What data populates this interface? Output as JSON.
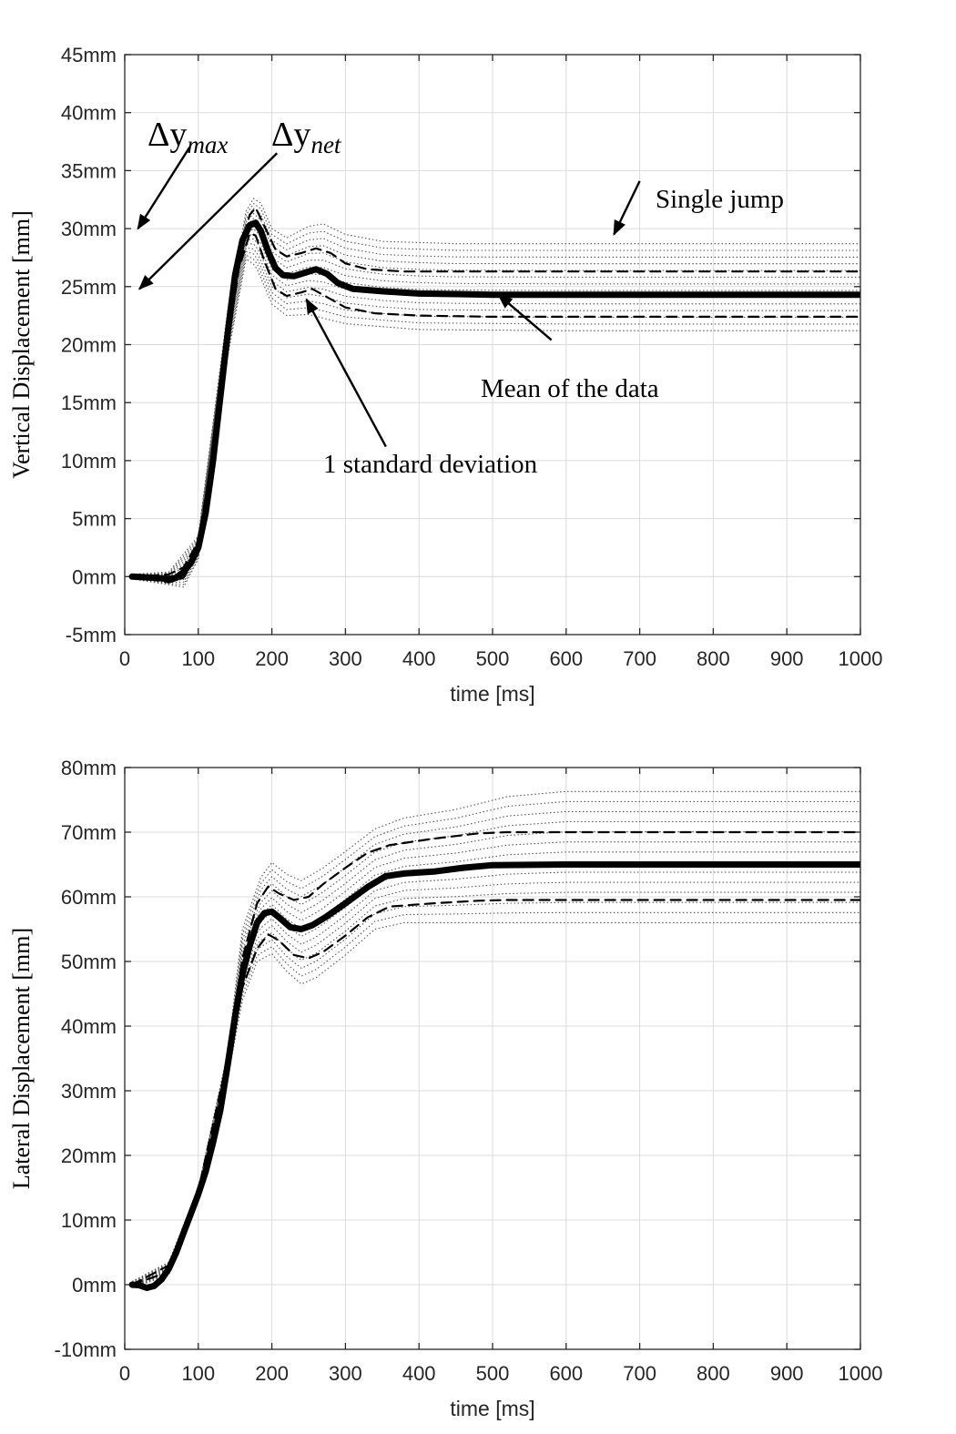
{
  "chart_data": [
    {
      "type": "line",
      "id": "vertical",
      "xlabel": "time [ms]",
      "ylabel": "Vertical Displacement [mm]",
      "xlim": [
        0,
        1000
      ],
      "ylim": [
        -5,
        45
      ],
      "xticks": [
        "0",
        "100",
        "200",
        "300",
        "400",
        "500",
        "600",
        "700",
        "800",
        "900",
        "1000"
      ],
      "yticks": [
        "-5mm",
        "0mm",
        "5mm",
        "10mm",
        "15mm",
        "20mm",
        "25mm",
        "30mm",
        "35mm",
        "40mm",
        "45mm"
      ],
      "grid": true,
      "series": [
        {
          "name": "Mean of the data",
          "style": "solid-thick",
          "points": [
            [
              10,
              0
            ],
            [
              40,
              -0.1
            ],
            [
              60,
              -0.2
            ],
            [
              70,
              -0.1
            ],
            [
              80,
              0.4
            ],
            [
              90,
              1.2
            ],
            [
              100,
              2.5
            ],
            [
              110,
              5.5
            ],
            [
              120,
              10
            ],
            [
              130,
              15.5
            ],
            [
              140,
              21
            ],
            [
              150,
              26
            ],
            [
              160,
              29
            ],
            [
              170,
              30.3
            ],
            [
              178,
              30.5
            ],
            [
              185,
              29.8
            ],
            [
              195,
              28
            ],
            [
              205,
              26.6
            ],
            [
              215,
              26
            ],
            [
              230,
              25.9
            ],
            [
              245,
              26.2
            ],
            [
              260,
              26.5
            ],
            [
              275,
              26.1
            ],
            [
              290,
              25.3
            ],
            [
              310,
              24.8
            ],
            [
              350,
              24.6
            ],
            [
              400,
              24.4
            ],
            [
              500,
              24.3
            ],
            [
              600,
              24.3
            ],
            [
              800,
              24.3
            ],
            [
              1000,
              24.3
            ]
          ]
        },
        {
          "name": "",
          "style": "dashed",
          "points": [
            [
              10,
              0.1
            ],
            [
              40,
              0.1
            ],
            [
              60,
              0.2
            ],
            [
              80,
              0.8
            ],
            [
              100,
              3
            ],
            [
              120,
              10.8
            ],
            [
              140,
              22
            ],
            [
              155,
              28
            ],
            [
              170,
              31.2
            ],
            [
              178,
              31.8
            ],
            [
              190,
              30.2
            ],
            [
              205,
              28.2
            ],
            [
              220,
              27.6
            ],
            [
              240,
              27.9
            ],
            [
              260,
              28.3
            ],
            [
              280,
              27.9
            ],
            [
              300,
              27
            ],
            [
              330,
              26.5
            ],
            [
              380,
              26.3
            ],
            [
              500,
              26.3
            ],
            [
              1000,
              26.3
            ]
          ]
        },
        {
          "name": "",
          "style": "dashed",
          "points": [
            [
              10,
              -0.1
            ],
            [
              40,
              -0.3
            ],
            [
              60,
              -0.5
            ],
            [
              80,
              -0.1
            ],
            [
              100,
              2
            ],
            [
              120,
              9.3
            ],
            [
              140,
              20
            ],
            [
              155,
              26.5
            ],
            [
              170,
              29.6
            ],
            [
              178,
              29.4
            ],
            [
              190,
              27.2
            ],
            [
              205,
              24.8
            ],
            [
              220,
              24.2
            ],
            [
              240,
              24.5
            ],
            [
              255,
              24.8
            ],
            [
              275,
              24.1
            ],
            [
              300,
              23.2
            ],
            [
              340,
              22.7
            ],
            [
              400,
              22.5
            ],
            [
              500,
              22.4
            ],
            [
              1000,
              22.4
            ]
          ]
        }
      ],
      "envelope": {
        "upper": [
          [
            10,
            0.2
          ],
          [
            60,
            0.4
          ],
          [
            100,
            3.5
          ],
          [
            140,
            23
          ],
          [
            165,
            31.5
          ],
          [
            175,
            32.6
          ],
          [
            185,
            32.2
          ],
          [
            200,
            30
          ],
          [
            220,
            29.2
          ],
          [
            250,
            30.2
          ],
          [
            270,
            30.4
          ],
          [
            300,
            29.5
          ],
          [
            350,
            28.9
          ],
          [
            450,
            28.7
          ],
          [
            1000,
            28.7
          ]
        ],
        "lower": [
          [
            10,
            -0.2
          ],
          [
            60,
            -0.7
          ],
          [
            80,
            -0.9
          ],
          [
            100,
            1.5
          ],
          [
            140,
            19
          ],
          [
            165,
            27.4
          ],
          [
            178,
            26.8
          ],
          [
            200,
            23.5
          ],
          [
            220,
            22.5
          ],
          [
            250,
            22.6
          ],
          [
            300,
            21.8
          ],
          [
            400,
            21.3
          ],
          [
            600,
            21.2
          ],
          [
            1000,
            21.2
          ]
        ],
        "count": 14
      },
      "annotations": [
        {
          "text": "Single jump",
          "arrow_from": [
            700,
            34.1
          ],
          "arrow_to": [
            665,
            29.5
          ]
        },
        {
          "text": "Mean of the data",
          "arrow_from": [
            580,
            20.4
          ],
          "arrow_to": [
            508,
            24.3
          ]
        },
        {
          "text": "1 standard deviation",
          "arrow_from": [
            355,
            11.2
          ],
          "arrow_to": [
            247,
            23.9
          ]
        },
        {
          "text": "Δy",
          "sub": "max",
          "arrow_from": [
            88,
            37
          ],
          "arrow_to": [
            18,
            30
          ]
        },
        {
          "text": "Δy",
          "sub": "net",
          "arrow_from": [
            207,
            36.5
          ],
          "arrow_to": [
            20,
            24.8
          ]
        }
      ]
    },
    {
      "type": "line",
      "id": "lateral",
      "xlabel": "time [ms]",
      "ylabel": "Lateral Displacement [mm]",
      "xlim": [
        0,
        1000
      ],
      "ylim": [
        -10,
        80
      ],
      "xticks": [
        "0",
        "100",
        "200",
        "300",
        "400",
        "500",
        "600",
        "700",
        "800",
        "900",
        "1000"
      ],
      "yticks": [
        "-10mm",
        "0mm",
        "10mm",
        "20mm",
        "30mm",
        "40mm",
        "50mm",
        "60mm",
        "70mm",
        "80mm"
      ],
      "grid": true,
      "series": [
        {
          "name": "",
          "style": "solid-thick",
          "points": [
            [
              10,
              0
            ],
            [
              20,
              -0.1
            ],
            [
              30,
              -0.5
            ],
            [
              40,
              -0.2
            ],
            [
              50,
              0.8
            ],
            [
              60,
              2.5
            ],
            [
              70,
              5
            ],
            [
              80,
              8
            ],
            [
              90,
              11
            ],
            [
              100,
              14
            ],
            [
              110,
              17.5
            ],
            [
              120,
              22
            ],
            [
              130,
              27
            ],
            [
              140,
              34
            ],
            [
              150,
              41.5
            ],
            [
              160,
              48
            ],
            [
              170,
              52.5
            ],
            [
              180,
              56
            ],
            [
              190,
              57.5
            ],
            [
              200,
              57.7
            ],
            [
              210,
              56.8
            ],
            [
              225,
              55.3
            ],
            [
              240,
              55
            ],
            [
              255,
              55.6
            ],
            [
              275,
              57
            ],
            [
              300,
              59
            ],
            [
              330,
              61.5
            ],
            [
              355,
              63.2
            ],
            [
              380,
              63.6
            ],
            [
              420,
              63.9
            ],
            [
              460,
              64.5
            ],
            [
              500,
              64.9
            ],
            [
              600,
              65
            ],
            [
              1000,
              65
            ]
          ]
        },
        {
          "name": "",
          "style": "dashed",
          "points": [
            [
              10,
              0
            ],
            [
              60,
              3
            ],
            [
              100,
              14.5
            ],
            [
              140,
              35
            ],
            [
              160,
              50.5
            ],
            [
              180,
              59
            ],
            [
              195,
              61.6
            ],
            [
              210,
              60.5
            ],
            [
              230,
              59.5
            ],
            [
              250,
              60
            ],
            [
              270,
              62
            ],
            [
              300,
              64.5
            ],
            [
              330,
              66.8
            ],
            [
              360,
              68
            ],
            [
              420,
              69
            ],
            [
              480,
              69.8
            ],
            [
              520,
              70
            ],
            [
              1000,
              70
            ]
          ]
        },
        {
          "name": "",
          "style": "dashed",
          "points": [
            [
              10,
              0
            ],
            [
              60,
              2
            ],
            [
              100,
              13.5
            ],
            [
              140,
              33
            ],
            [
              160,
              46
            ],
            [
              180,
              52
            ],
            [
              195,
              54.2
            ],
            [
              210,
              53.2
            ],
            [
              230,
              51
            ],
            [
              250,
              50.5
            ],
            [
              270,
              51.5
            ],
            [
              300,
              54
            ],
            [
              330,
              56.8
            ],
            [
              360,
              58.5
            ],
            [
              420,
              59
            ],
            [
              480,
              59.4
            ],
            [
              520,
              59.5
            ],
            [
              1000,
              59.5
            ]
          ]
        }
      ],
      "envelope": {
        "upper": [
          [
            10,
            0.5
          ],
          [
            60,
            3.5
          ],
          [
            100,
            15
          ],
          [
            140,
            36
          ],
          [
            160,
            55
          ],
          [
            185,
            63
          ],
          [
            200,
            65.3
          ],
          [
            220,
            63.5
          ],
          [
            240,
            62.5
          ],
          [
            270,
            64.5
          ],
          [
            300,
            67
          ],
          [
            340,
            70.5
          ],
          [
            380,
            72.2
          ],
          [
            450,
            73.5
          ],
          [
            520,
            75.5
          ],
          [
            600,
            76.3
          ],
          [
            1000,
            76.3
          ]
        ],
        "lower": [
          [
            10,
            -0.5
          ],
          [
            60,
            1.5
          ],
          [
            100,
            13
          ],
          [
            140,
            32
          ],
          [
            160,
            44
          ],
          [
            180,
            50
          ],
          [
            200,
            51.2
          ],
          [
            220,
            48.5
          ],
          [
            240,
            46.5
          ],
          [
            260,
            47.5
          ],
          [
            300,
            51
          ],
          [
            340,
            55
          ],
          [
            380,
            56
          ],
          [
            450,
            56
          ],
          [
            1000,
            56
          ]
        ],
        "count": 14
      }
    }
  ]
}
